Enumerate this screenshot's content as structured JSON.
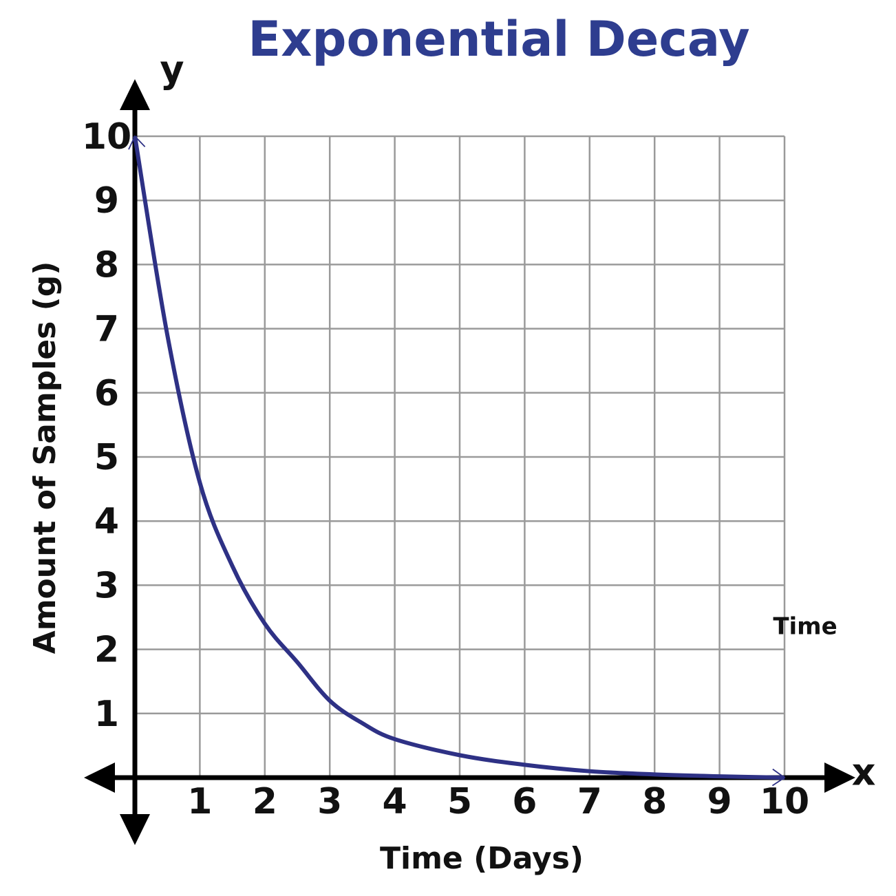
{
  "chart_data": {
    "type": "line",
    "title": "Exponential Decay",
    "x_label": "Time (Days)",
    "y_label": "Amount of Samples (g)",
    "x_axis_letter": "x",
    "y_axis_letter": "y",
    "annotation": "Time",
    "x": [
      0,
      0.5,
      1,
      1.5,
      2,
      2.5,
      3,
      3.5,
      4,
      5,
      6,
      7,
      8,
      9,
      10
    ],
    "values": [
      10,
      6.9,
      4.6,
      3.3,
      2.4,
      1.8,
      1.2,
      0.85,
      0.6,
      0.35,
      0.2,
      0.1,
      0.05,
      0.02,
      0
    ],
    "color": "#2e3185",
    "xlim": [
      0,
      10
    ],
    "ylim": [
      0,
      10
    ],
    "xticks": [
      1,
      2,
      3,
      4,
      5,
      6,
      7,
      8,
      9,
      10
    ],
    "yticks": [
      1,
      2,
      3,
      4,
      5,
      6,
      7,
      8,
      9,
      10
    ],
    "grid": true
  }
}
